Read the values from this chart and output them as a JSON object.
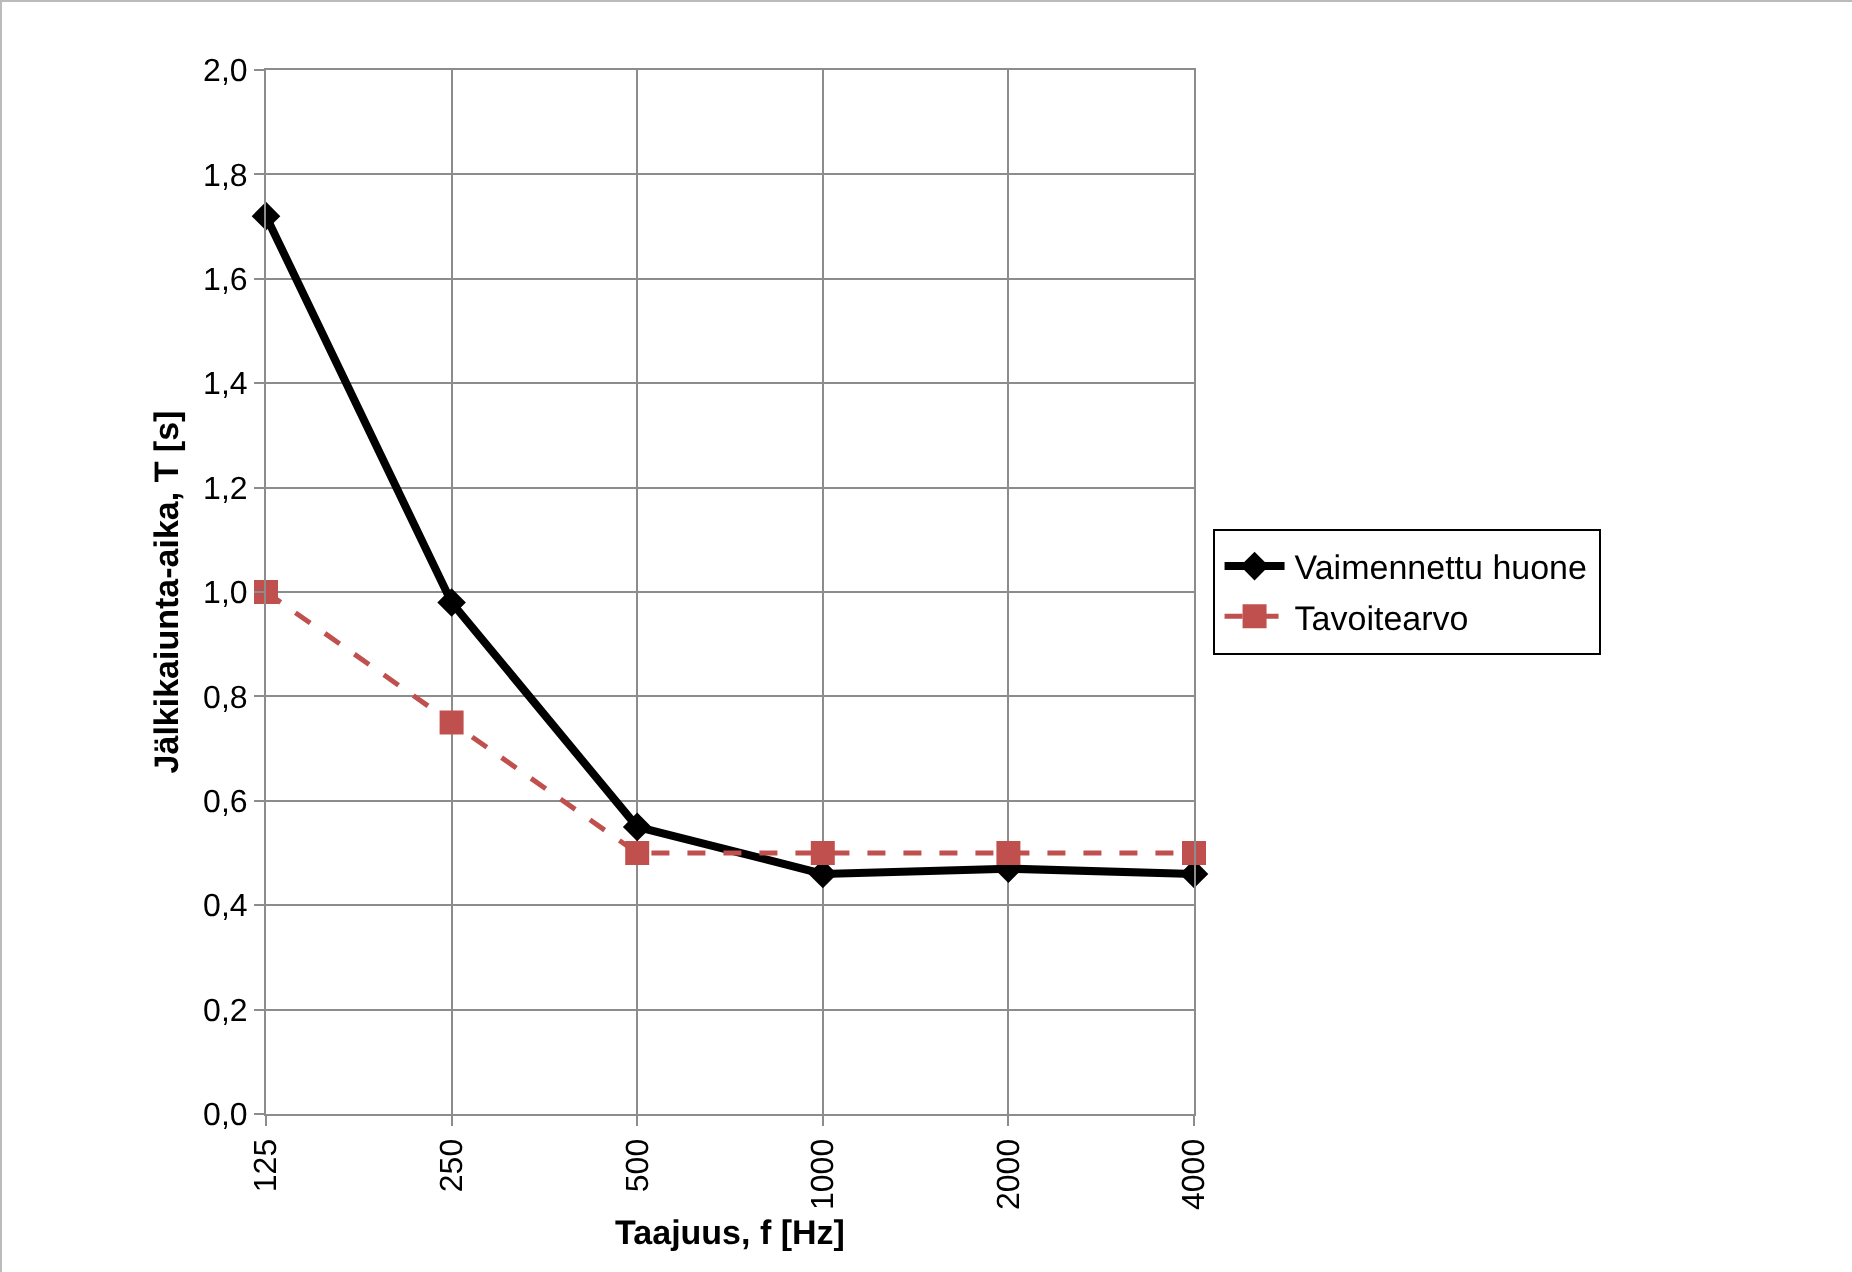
{
  "chart_data": {
    "type": "line",
    "xlabel": "Taajuus, f [Hz]",
    "ylabel": "Jälkikaiunta-aika, T [s]",
    "categories": [
      "125",
      "250",
      "500",
      "1000",
      "2000",
      "4000"
    ],
    "series": [
      {
        "name": "Vaimennettu huone",
        "color": "#000000",
        "values": [
          1.72,
          0.98,
          0.55,
          0.46,
          0.47,
          0.46
        ],
        "marker": "diamond",
        "line_style": "solid"
      },
      {
        "name": "Tavoitearvo",
        "color": "#c0504d",
        "values": [
          1.0,
          0.75,
          0.5,
          0.5,
          0.5,
          0.5
        ],
        "marker": "square",
        "line_style": "dashed"
      }
    ],
    "ylim": [
      0,
      2
    ],
    "yticks": [
      {
        "value": 0,
        "label": "0,0"
      },
      {
        "value": 0.2,
        "label": "0,2"
      },
      {
        "value": 0.4,
        "label": "0,4"
      },
      {
        "value": 0.6,
        "label": "0,6"
      },
      {
        "value": 0.8,
        "label": "0,8"
      },
      {
        "value": 1,
        "label": "1,0"
      },
      {
        "value": 1.2,
        "label": "1,2"
      },
      {
        "value": 1.4,
        "label": "1,4"
      },
      {
        "value": 1.6,
        "label": "1,6"
      },
      {
        "value": 1.8,
        "label": "1,8"
      },
      {
        "value": 2,
        "label": "2,0"
      }
    ],
    "grid": true,
    "legend": "right"
  }
}
